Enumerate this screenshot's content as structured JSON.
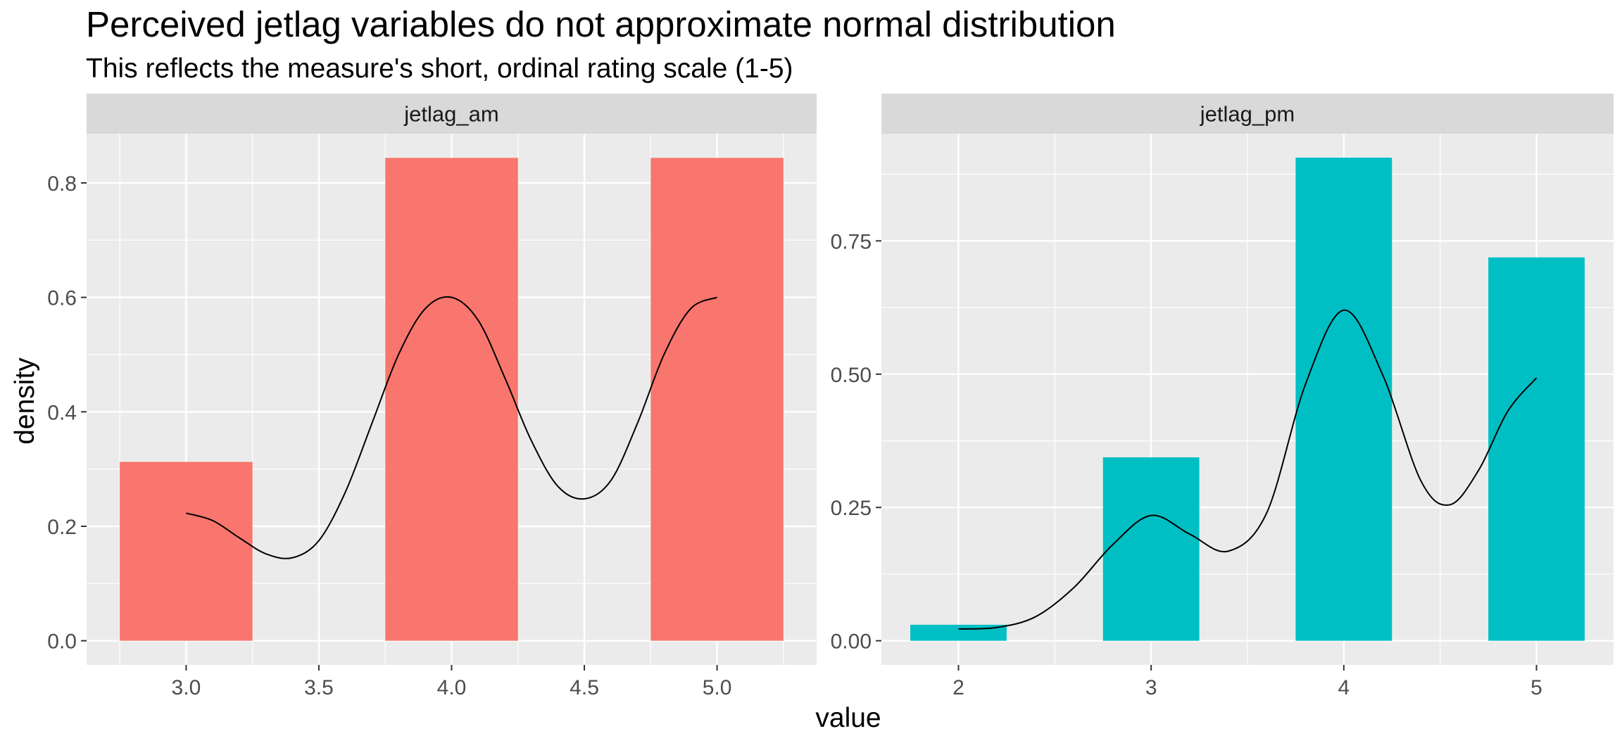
{
  "chart_data": {
    "type": "bar",
    "title": "Perceived jetlag variables do not approximate normal distribution",
    "subtitle": "This reflects the measure's short, ordinal rating scale (1-5)",
    "xlabel": "value",
    "ylabel": "density",
    "grid": true,
    "legend": "none",
    "panels": [
      {
        "name": "jetlag_am",
        "color": "#F8766D",
        "x": [
          3,
          4,
          5
        ],
        "values": [
          0.3125,
          0.84375,
          0.84375
        ],
        "bar_width": 0.5,
        "xlim": [
          2.625,
          5.375
        ],
        "ylim": [
          -0.0422,
          0.886
        ],
        "x_ticks": [
          3.0,
          3.5,
          4.0,
          4.5,
          5.0
        ],
        "x_tick_labels": [
          "3.0",
          "3.5",
          "4.0",
          "4.5",
          "5.0"
        ],
        "y_ticks": [
          0.0,
          0.2,
          0.4,
          0.6,
          0.8
        ],
        "y_tick_labels": [
          "0.0",
          "0.2",
          "0.4",
          "0.6",
          "0.8"
        ],
        "density_curve": {
          "x": [
            3.0,
            3.1,
            3.2,
            3.3,
            3.4,
            3.5,
            3.6,
            3.7,
            3.8,
            3.9,
            4.0,
            4.1,
            4.2,
            4.3,
            4.4,
            4.5,
            4.6,
            4.7,
            4.8,
            4.9,
            5.0
          ],
          "y": [
            0.223,
            0.21,
            0.18,
            0.152,
            0.145,
            0.175,
            0.26,
            0.38,
            0.5,
            0.58,
            0.6,
            0.56,
            0.46,
            0.35,
            0.27,
            0.248,
            0.28,
            0.38,
            0.5,
            0.58,
            0.6
          ]
        }
      },
      {
        "name": "jetlag_pm",
        "color": "#00BFC4",
        "x": [
          2,
          3,
          4,
          5
        ],
        "values": [
          0.03,
          0.344,
          0.906,
          0.719
        ],
        "bar_width": 0.5,
        "xlim": [
          1.6,
          5.4
        ],
        "ylim": [
          -0.0453,
          0.951
        ],
        "x_ticks": [
          2,
          3,
          4,
          5
        ],
        "x_tick_labels": [
          "2",
          "3",
          "4",
          "5"
        ],
        "y_ticks": [
          0.0,
          0.25,
          0.5,
          0.75
        ],
        "y_tick_labels": [
          "0.00",
          "0.25",
          "0.50",
          "0.75"
        ],
        "density_curve": {
          "x": [
            2.0,
            2.2,
            2.4,
            2.6,
            2.8,
            3.0,
            3.2,
            3.4,
            3.6,
            3.8,
            4.0,
            4.2,
            4.4,
            4.55,
            4.7,
            4.85,
            5.0
          ],
          "y": [
            0.022,
            0.025,
            0.045,
            0.1,
            0.18,
            0.235,
            0.2,
            0.168,
            0.24,
            0.48,
            0.62,
            0.5,
            0.3,
            0.255,
            0.32,
            0.43,
            0.493
          ]
        }
      }
    ]
  }
}
